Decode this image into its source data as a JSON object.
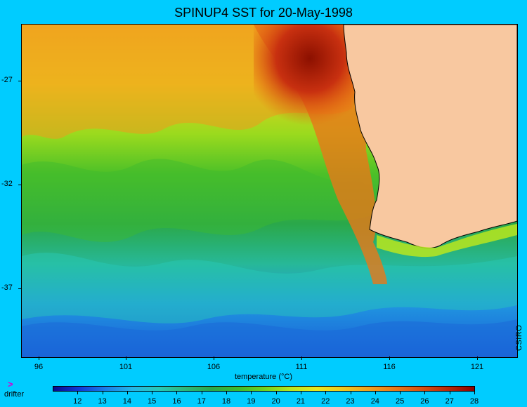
{
  "title": "SPINUP4 SST for 20-May-1998",
  "y_axis": {
    "ticks": [
      "-27",
      "-32",
      "-37"
    ]
  },
  "x_axis": {
    "ticks": [
      "96",
      "101",
      "106",
      "111",
      "116",
      "121"
    ]
  },
  "credit": "CSIRO",
  "colorbar": {
    "label": "temperature (°C)",
    "ticks": [
      "12",
      "13",
      "14",
      "15",
      "16",
      "17",
      "18",
      "19",
      "20",
      "21",
      "22",
      "23",
      "24",
      "25",
      "26",
      "27",
      "28"
    ],
    "range": [
      11,
      28
    ],
    "colors": [
      "#08088c",
      "#1039d8",
      "#1a7ee8",
      "#23b7e8",
      "#27c9b8",
      "#2db87a",
      "#2aa84a",
      "#3dbb2e",
      "#6ed21e",
      "#b8e61e",
      "#e8e81e",
      "#f0c81e",
      "#f0a01e",
      "#e87818",
      "#d85010",
      "#b82808",
      "#8c0000"
    ]
  },
  "legend": {
    "drifter_label": "drifter"
  },
  "map": {
    "land_color": "#f8c8a0",
    "warm_color": "#e86010",
    "hot_color": "#8c1000"
  }
}
